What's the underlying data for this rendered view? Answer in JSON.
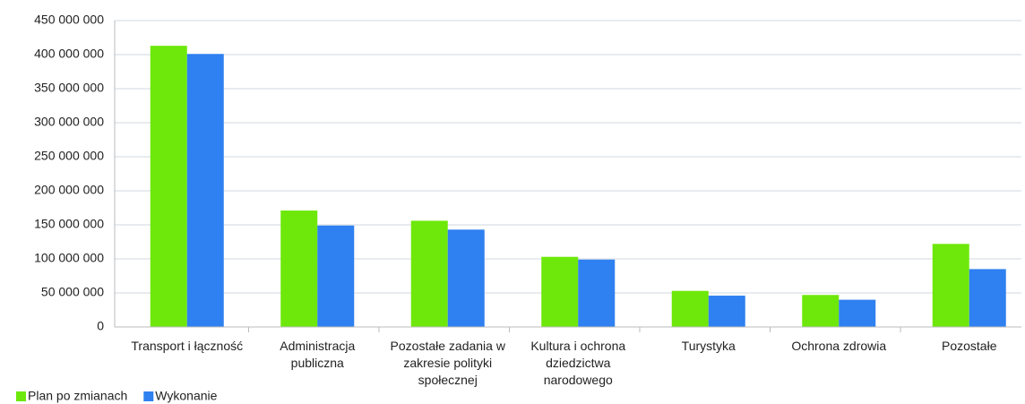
{
  "chart_data": {
    "type": "bar",
    "categories": [
      "Transport i łączność",
      "Administracja publiczna",
      "Pozostałe zadania w zakresie polityki społecznej",
      "Kultura i ochrona dziedzictwa narodowego",
      "Turystyka",
      "Ochrona zdrowia",
      "Pozostałe"
    ],
    "series": [
      {
        "name": "Plan po zmianach",
        "color": "#6ee80a",
        "values": [
          413000000,
          171000000,
          156000000,
          103000000,
          53000000,
          47000000,
          122000000
        ]
      },
      {
        "name": "Wykonanie",
        "color": "#2f80f0",
        "values": [
          401000000,
          149000000,
          143000000,
          99000000,
          46000000,
          40000000,
          85000000
        ]
      }
    ],
    "ylim": [
      0,
      450000000
    ],
    "yticks": [
      0,
      {
        "value": 50000000,
        "label": "50 000 000"
      },
      {
        "value": 100000000,
        "label": "100 000 000"
      },
      {
        "value": 150000000,
        "label": "150 000 000"
      },
      {
        "value": 200000000,
        "label": "200 000 000"
      },
      {
        "value": 250000000,
        "label": "250 000 000"
      },
      {
        "value": 300000000,
        "label": "300 000 000"
      },
      {
        "value": 350000000,
        "label": "350 000 000"
      },
      {
        "value": 400000000,
        "label": "400 000 000"
      },
      {
        "value": 450000000,
        "label": "450 000 000"
      }
    ],
    "grid": true,
    "legend": "bottom-left"
  }
}
